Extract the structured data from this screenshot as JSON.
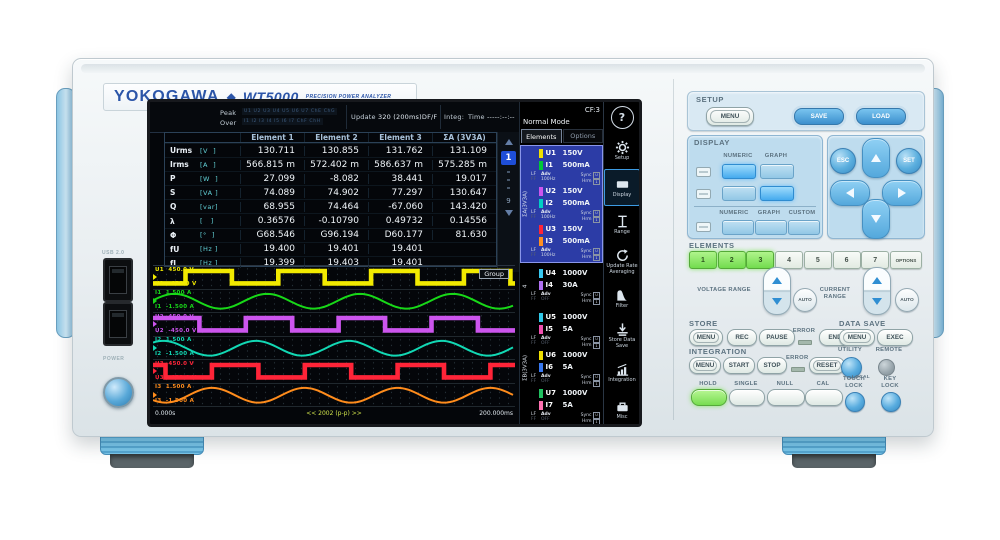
{
  "brand": {
    "logo": "YOKOGAWA",
    "diamond": "◆",
    "model": "WT5000",
    "tagline": "PRECISION POWER ANALYZER"
  },
  "chassis": {
    "usb_label": "USB 2.0",
    "power_label": "POWER"
  },
  "screen": {
    "status": {
      "peak_label": "Peak",
      "peak_channels": "U1 U2 U3 U4 U5 U6 U7 ChE ChG",
      "over_label": "Over",
      "over_channels": "I1 I2 I3 I4 I5 I6 I7 ChF ChH",
      "update_label": "Update",
      "update_value": "320 (200ms)DF/F",
      "integ_label": "Integ:",
      "time_label": "Time",
      "time_value": "-----:--:--",
      "cf": "CF:3",
      "mode": "Normal Mode",
      "help": "?"
    },
    "table": {
      "headers": [
        "Element 1",
        "Element 2",
        "Element 3",
        "ΣA (3V3A)"
      ],
      "rows": [
        {
          "name": "Urms",
          "unit": "[V  ]",
          "values": [
            "130.711",
            "130.855",
            "131.762",
            "131.109"
          ]
        },
        {
          "name": "Irms",
          "unit": "[A  ]",
          "values": [
            "566.815 m",
            "572.402 m",
            "586.637 m",
            "575.285 m"
          ]
        },
        {
          "name": "P",
          "unit": "[W  ]",
          "values": [
            "27.099",
            "-8.082",
            "38.441",
            "19.017"
          ]
        },
        {
          "name": "S",
          "unit": "[VA ]",
          "values": [
            "74.089",
            "74.902",
            "77.297",
            "130.647"
          ]
        },
        {
          "name": "Q",
          "unit": "[var]",
          "values": [
            "68.955",
            "74.464",
            "-67.060",
            "143.420"
          ]
        },
        {
          "name": "λ",
          "unit": "[   ]",
          "values": [
            "0.36576",
            "-0.10790",
            "0.49732",
            "0.14556"
          ]
        },
        {
          "name": "Φ",
          "unit": "[°  ]",
          "values": [
            "G68.546",
            "G96.194",
            "D60.177",
            "81.630"
          ]
        },
        {
          "name": "fU",
          "unit": "[Hz ]",
          "values": [
            "19.400",
            "19.401",
            "19.401",
            ""
          ]
        },
        {
          "name": "fI",
          "unit": "[Hz ]",
          "values": [
            "19.399",
            "19.403",
            "19.401",
            ""
          ]
        }
      ]
    },
    "pager": {
      "current": "1",
      "last": "9"
    },
    "elements_panel": {
      "tabs": [
        "Elements",
        "Options"
      ],
      "pair_labels": {
        "lf": "LF",
        "ff": "FF",
        "adv": "Adv",
        "sync": "Sync",
        "hrm": "Hrm",
        "box1": "U",
        "box2": "1"
      },
      "groups": [
        {
          "label": "ΣA(3V3A)",
          "selected": true,
          "pairs": [
            {
              "u": "U1",
              "u_value": "150V",
              "u_color": "#f0e000",
              "i": "I1",
              "i_value": "500mA",
              "i_color": "#00c838",
              "adv": "100Hz",
              "adv_on": true
            },
            {
              "u": "U2",
              "u_value": "150V",
              "u_color": "#cc55ee",
              "i": "I2",
              "i_value": "500mA",
              "i_color": "#00cfc4",
              "adv": "100Hz",
              "adv_on": true
            },
            {
              "u": "U3",
              "u_value": "150V",
              "u_color": "#ff2438",
              "i": "I3",
              "i_value": "500mA",
              "i_color": "#ff9020",
              "adv": "100Hz",
              "adv_on": true
            }
          ]
        },
        {
          "label": "4",
          "selected": false,
          "pairs": [
            {
              "u": "U4",
              "u_value": "1000V",
              "u_color": "#38c8f0",
              "i": "I4",
              "i_value": "30A",
              "i_color": "#b070f0",
              "adv": "OFF",
              "adv_on": false
            }
          ]
        },
        {
          "label": "ΣB(3V3A)",
          "selected": false,
          "pairs": [
            {
              "u": "U5",
              "u_value": "1000V",
              "u_color": "#30c8e8",
              "i": "I5",
              "i_value": "5A",
              "i_color": "#f050b0",
              "adv": "OFF",
              "adv_on": false
            },
            {
              "u": "U6",
              "u_value": "1000V",
              "u_color": "#f0e000",
              "i": "I6",
              "i_value": "5A",
              "i_color": "#3878f0",
              "adv": "OFF",
              "adv_on": false
            },
            {
              "u": "U7",
              "u_value": "1000V",
              "u_color": "#20c060",
              "i": "I7",
              "i_value": "5A",
              "i_color": "#ff70b0",
              "adv": "OFF",
              "adv_on": false
            }
          ]
        }
      ]
    },
    "softkeys": [
      {
        "icon": "gear",
        "label": "Setup",
        "selected": false
      },
      {
        "icon": "display",
        "label": "Display",
        "selected": true
      },
      {
        "icon": "range",
        "label": "Range",
        "selected": false
      },
      {
        "icon": "update-arrows",
        "label": "Update Rate Averaging",
        "selected": false
      },
      {
        "icon": "filter",
        "label": "Filter",
        "selected": false
      },
      {
        "icon": "store-arrow",
        "label": "Store Data Save",
        "selected": false
      },
      {
        "icon": "integration-chart",
        "label": "Integration",
        "selected": false
      },
      {
        "icon": "toolbox",
        "label": "Misc",
        "selected": false
      }
    ],
    "waveform": {
      "group_label": "Group",
      "t_start": "0.000s",
      "t_center": "<< 2002 (p-p) >>",
      "t_end": "200.000ms",
      "cycles": 3.9,
      "traces": [
        {
          "ch": "U1",
          "type": "square",
          "color": "#f2ea00",
          "phase": 0.35,
          "scale_top": "450.0 V",
          "scale_bottom": "-450.0 V"
        },
        {
          "ch": "I1",
          "type": "sine",
          "color": "#18d818",
          "phase": 0.98,
          "scale_top": "1.500 A",
          "scale_bottom": "-1.500 A"
        },
        {
          "ch": "U2",
          "type": "square",
          "color": "#cc55ee",
          "phase": 0.0,
          "scale_top": "450.0 V",
          "scale_bottom": "-450.0 V"
        },
        {
          "ch": "I2",
          "type": "sine",
          "color": "#12d8b4",
          "phase": 0.86,
          "scale_top": "1.500 A",
          "scale_bottom": "-1.500 A"
        },
        {
          "ch": "U3",
          "type": "square",
          "color": "#ff2438",
          "phase": 0.635,
          "scale_top": "450.0 V",
          "scale_bottom": "-450.0 V"
        },
        {
          "ch": "I3",
          "type": "sine",
          "color": "#ff8c1c",
          "phase": 0.385,
          "scale_top": "1.500 A",
          "scale_bottom": "-1.500 A"
        }
      ]
    }
  },
  "keypad": {
    "setup": {
      "title": "SETUP",
      "menu": "MENU",
      "save": "SAVE",
      "load": "LOAD"
    },
    "display": {
      "title": "DISPLAY",
      "numeric": "NUMERIC",
      "graph": "GRAPH",
      "custom": "CUSTOM"
    },
    "nav": {
      "esc": "ESC",
      "set": "SET"
    },
    "elements": {
      "title": "ELEMENTS",
      "keys": [
        "1",
        "2",
        "3",
        "4",
        "5",
        "6",
        "7",
        "OPTIONS"
      ],
      "active_count": 3
    },
    "voltage_range": {
      "label": "VOLTAGE RANGE",
      "auto": "AUTO"
    },
    "current_range": {
      "label": "CURRENT RANGE",
      "auto": "AUTO"
    },
    "store": {
      "title": "STORE",
      "menu": "MENU",
      "rec": "REC",
      "pause": "PAUSE",
      "error": "ERROR",
      "end": "END"
    },
    "data_save": {
      "title": "DATA SAVE",
      "menu": "MENU",
      "exec": "EXEC"
    },
    "integration": {
      "title": "INTEGRATION",
      "menu": "MENU",
      "start": "START",
      "stop": "STOP",
      "error": "ERROR",
      "reset": "RESET"
    },
    "utility": {
      "label": "UTILITY",
      "remote": "REMOTE",
      "local": "LOCAL"
    },
    "hold": "HOLD",
    "single": "SINGLE",
    "null_label": "NULL",
    "cal": "CAL",
    "touch_lock": "TOUCH LOCK",
    "key_lock": "KEY LOCK"
  }
}
